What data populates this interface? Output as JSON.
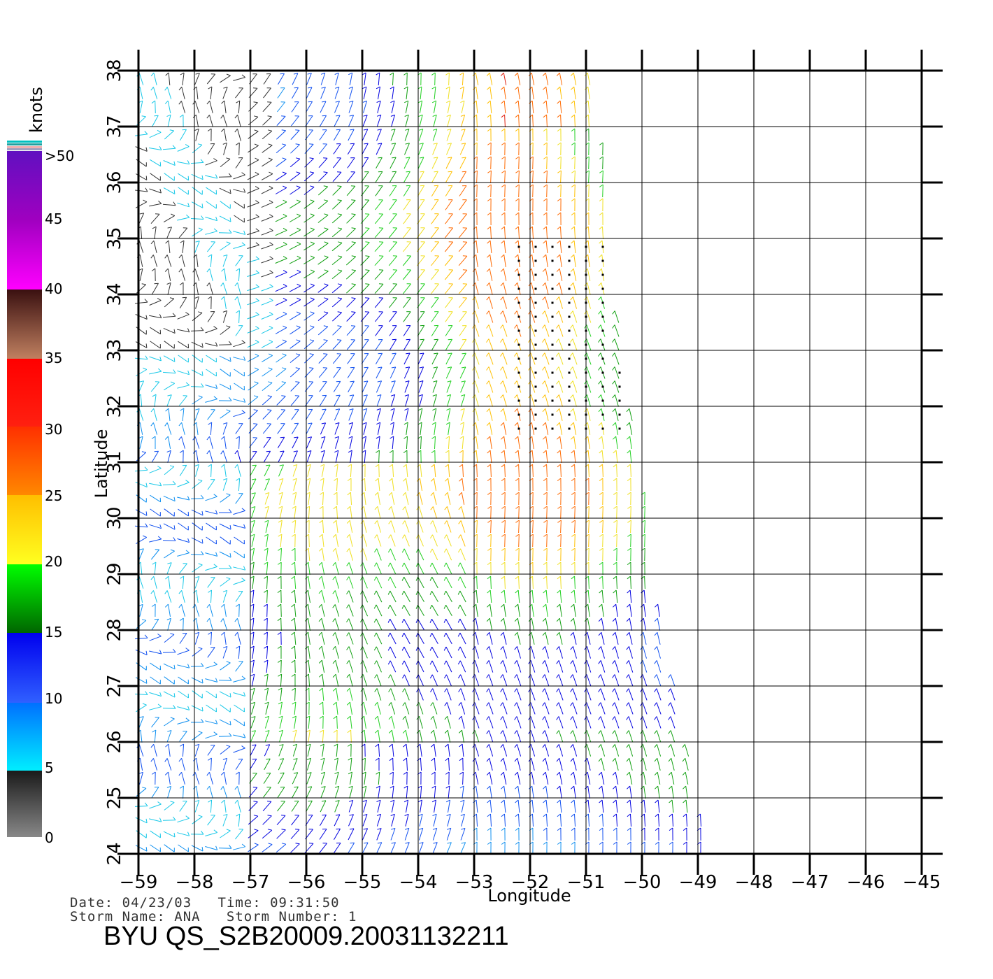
{
  "map": {
    "lon_range": [
      -59,
      -45
    ],
    "lat_range": [
      24,
      38
    ],
    "lon_ticks": [
      "−59",
      "−58",
      "−57",
      "−56",
      "−55",
      "−54",
      "−53",
      "−52",
      "−51",
      "−50",
      "−49",
      "−48",
      "−47",
      "−46",
      "−45"
    ],
    "lat_ticks": [
      "24",
      "25",
      "26",
      "27",
      "28",
      "29",
      "30",
      "31",
      "32",
      "33",
      "34",
      "35",
      "36",
      "37",
      "38"
    ],
    "xlabel": "Longitude",
    "ylabel": "Latitude",
    "swath_right_edge_lon": [
      {
        "lat": 38,
        "lon": -50.8
      },
      {
        "lat": 34,
        "lon": -50.5
      },
      {
        "lat": 32,
        "lon": -50.2
      },
      {
        "lat": 31,
        "lon": -50.0
      },
      {
        "lat": 29,
        "lon": -49.8
      },
      {
        "lat": 27,
        "lon": -49.4
      },
      {
        "lat": 24,
        "lon": -48.8
      }
    ],
    "vector_color_note": "wind vectors colored by speed"
  },
  "legend": {
    "unit": "knots",
    "labels": [
      "0",
      "5",
      "10",
      "15",
      "20",
      "25",
      "30",
      "35",
      "40",
      "45",
      ">50"
    ],
    "colors": {
      "0_5": [
        "#888888",
        "#1a1a1a"
      ],
      "5_10": [
        "#00eeff",
        "#0060ff"
      ],
      "10_15": [
        "#3060ff",
        "#0000ee"
      ],
      "15_20": [
        "#006600",
        "#00ff00"
      ],
      "20_25": [
        "#ffff20",
        "#ffbf00"
      ],
      "25_30": [
        "#ff8800",
        "#ff3000"
      ],
      "30_35": [
        "#ff2010",
        "#ff0000"
      ],
      "35_40": [
        "#c08060",
        "#3a1010"
      ],
      "40_50": [
        "#ff00ff",
        "#6010c0"
      ]
    }
  },
  "info": {
    "line1": "Date: 04/23/03   Time: 09:31:50",
    "line2": "Storm Name: ANA   Storm Number: 1",
    "title": "BYU  QS_S2B20009.20031132211"
  }
}
